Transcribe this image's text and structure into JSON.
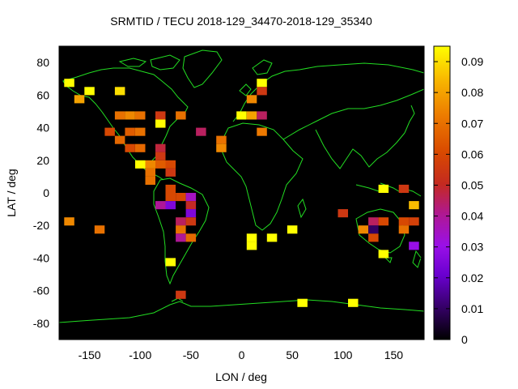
{
  "chart_data": {
    "type": "heatmap",
    "title": "SRMTID / TECU 2018-129_34470-2018-129_35340",
    "xlabel": "LON / deg",
    "ylabel": "LAT / deg",
    "xlim": [
      -180,
      180
    ],
    "ylim": [
      -90,
      90
    ],
    "xticks": [
      -150,
      -100,
      -50,
      0,
      50,
      100,
      150
    ],
    "yticks": [
      -80,
      -60,
      -40,
      -20,
      0,
      20,
      40,
      60,
      80
    ],
    "xtick_labels": [
      "-150",
      "-100",
      "-50",
      "0",
      "50",
      "100",
      "150"
    ],
    "ytick_labels": [
      "-80",
      "-60",
      "-40",
      "-20",
      "0",
      "20",
      "40",
      "60",
      "80"
    ],
    "colorbar": {
      "range": [
        0,
        0.095
      ],
      "ticks": [
        0,
        0.01,
        0.02,
        0.03,
        0.04,
        0.05,
        0.06,
        0.07,
        0.08,
        0.09
      ],
      "tick_labels": [
        "0",
        "0.01",
        "0.02",
        "0.03",
        "0.04",
        "0.05",
        "0.06",
        "0.07",
        "0.08",
        "0.09"
      ],
      "colormap": "gnuplot_pm3d_black_purple_red_orange_yellow"
    },
    "cell_size_deg": [
      10,
      5
    ],
    "cells": [
      {
        "lon": -170,
        "lat": 67.5,
        "value": 0.095
      },
      {
        "lon": -150,
        "lat": 62.5,
        "value": 0.095
      },
      {
        "lon": -160,
        "lat": 57.5,
        "value": 0.08
      },
      {
        "lon": -120,
        "lat": 62.5,
        "value": 0.09
      },
      {
        "lon": -120,
        "lat": 47.5,
        "value": 0.07
      },
      {
        "lon": -110,
        "lat": 47.5,
        "value": 0.075
      },
      {
        "lon": -100,
        "lat": 47.5,
        "value": 0.07
      },
      {
        "lon": -130,
        "lat": 37.5,
        "value": 0.06
      },
      {
        "lon": -110,
        "lat": 37.5,
        "value": 0.065
      },
      {
        "lon": -100,
        "lat": 37.5,
        "value": 0.07
      },
      {
        "lon": -120,
        "lat": 32.5,
        "value": 0.068
      },
      {
        "lon": -110,
        "lat": 27.5,
        "value": 0.06
      },
      {
        "lon": -100,
        "lat": 27.5,
        "value": 0.068
      },
      {
        "lon": -80,
        "lat": 47.5,
        "value": 0.055
      },
      {
        "lon": -60,
        "lat": 47.5,
        "value": 0.07
      },
      {
        "lon": -80,
        "lat": 42.5,
        "value": 0.095
      },
      {
        "lon": -40,
        "lat": 37.5,
        "value": 0.045
      },
      {
        "lon": -80,
        "lat": 27.5,
        "value": 0.048
      },
      {
        "lon": -80,
        "lat": 22.5,
        "value": 0.055
      },
      {
        "lon": -80,
        "lat": 17.5,
        "value": 0.065
      },
      {
        "lon": -90,
        "lat": 17.5,
        "value": 0.075
      },
      {
        "lon": -100,
        "lat": 17.5,
        "value": 0.095
      },
      {
        "lon": -70,
        "lat": 17.5,
        "value": 0.06
      },
      {
        "lon": -90,
        "lat": 12.5,
        "value": 0.07
      },
      {
        "lon": -90,
        "lat": 7.5,
        "value": 0.07
      },
      {
        "lon": -70,
        "lat": 12.5,
        "value": 0.055
      },
      {
        "lon": -70,
        "lat": 2.5,
        "value": 0.06
      },
      {
        "lon": -70,
        "lat": -2.5,
        "value": 0.06
      },
      {
        "lon": -60,
        "lat": -2.5,
        "value": 0.06
      },
      {
        "lon": -50,
        "lat": -2.5,
        "value": 0.035
      },
      {
        "lon": -80,
        "lat": -7.5,
        "value": 0.04
      },
      {
        "lon": -70,
        "lat": -7.5,
        "value": 0.025
      },
      {
        "lon": -50,
        "lat": -7.5,
        "value": 0.05
      },
      {
        "lon": -50,
        "lat": -12.5,
        "value": 0.025
      },
      {
        "lon": -60,
        "lat": -17.5,
        "value": 0.045
      },
      {
        "lon": -50,
        "lat": -17.5,
        "value": 0.055
      },
      {
        "lon": -60,
        "lat": -22.5,
        "value": 0.07
      },
      {
        "lon": -60,
        "lat": -27.5,
        "value": 0.04
      },
      {
        "lon": -50,
        "lat": -27.5,
        "value": 0.068
      },
      {
        "lon": -70,
        "lat": -42.5,
        "value": 0.095
      },
      {
        "lon": -60,
        "lat": -62.5,
        "value": 0.055
      },
      {
        "lon": -170,
        "lat": -17.5,
        "value": 0.075
      },
      {
        "lon": -140,
        "lat": -22.5,
        "value": 0.07
      },
      {
        "lon": 0,
        "lat": 47.5,
        "value": 0.095
      },
      {
        "lon": 10,
        "lat": 47.5,
        "value": 0.08
      },
      {
        "lon": 20,
        "lat": 47.5,
        "value": 0.045
      },
      {
        "lon": 20,
        "lat": 67.5,
        "value": 0.095
      },
      {
        "lon": 20,
        "lat": 62.5,
        "value": 0.055
      },
      {
        "lon": 10,
        "lat": 57.5,
        "value": 0.075
      },
      {
        "lon": 20,
        "lat": 37.5,
        "value": 0.072
      },
      {
        "lon": -20,
        "lat": 32.5,
        "value": 0.07
      },
      {
        "lon": -20,
        "lat": 27.5,
        "value": 0.075
      },
      {
        "lon": 10,
        "lat": -27.5,
        "value": 0.095
      },
      {
        "lon": 10,
        "lat": -32.5,
        "value": 0.095
      },
      {
        "lon": 30,
        "lat": -27.5,
        "value": 0.095
      },
      {
        "lon": 50,
        "lat": -22.5,
        "value": 0.095
      },
      {
        "lon": 60,
        "lat": -67.5,
        "value": 0.095
      },
      {
        "lon": 110,
        "lat": -67.5,
        "value": 0.095
      },
      {
        "lon": 140,
        "lat": 2.5,
        "value": 0.095
      },
      {
        "lon": 160,
        "lat": 2.5,
        "value": 0.055
      },
      {
        "lon": 170,
        "lat": -7.5,
        "value": 0.085
      },
      {
        "lon": 100,
        "lat": -12.5,
        "value": 0.055
      },
      {
        "lon": 130,
        "lat": -17.5,
        "value": 0.045
      },
      {
        "lon": 140,
        "lat": -17.5,
        "value": 0.06
      },
      {
        "lon": 160,
        "lat": -17.5,
        "value": 0.06
      },
      {
        "lon": 170,
        "lat": -17.5,
        "value": 0.058
      },
      {
        "lon": 120,
        "lat": -22.5,
        "value": 0.075
      },
      {
        "lon": 130,
        "lat": -22.5,
        "value": 0.01
      },
      {
        "lon": 160,
        "lat": -22.5,
        "value": 0.07
      },
      {
        "lon": 130,
        "lat": -27.5,
        "value": 0.06
      },
      {
        "lon": 170,
        "lat": -32.5,
        "value": 0.03
      },
      {
        "lon": 140,
        "lat": -37.5,
        "value": 0.095
      }
    ]
  }
}
